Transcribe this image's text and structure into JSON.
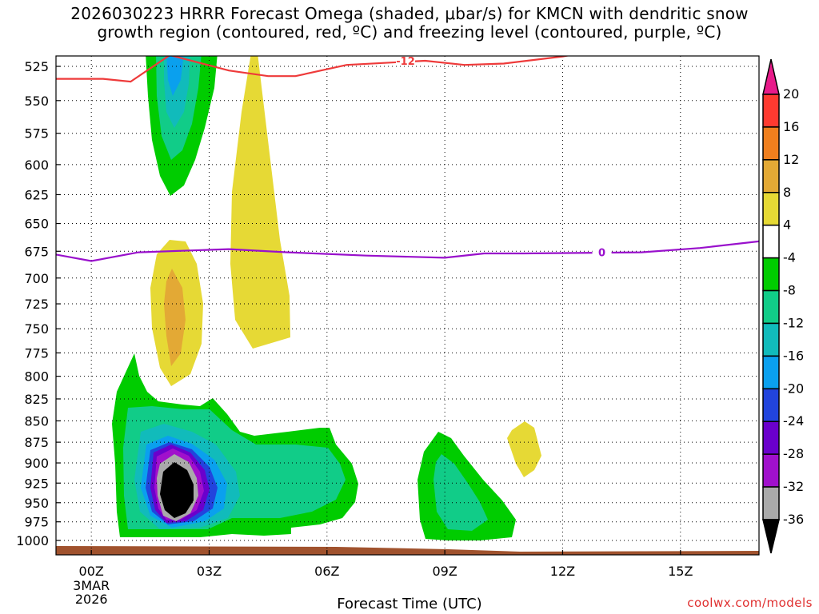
{
  "title_line1": "2026030223 HRRR Forecast Omega (shaded, μbar/s) for KMCN with dendritic snow",
  "title_line2": "growth region (contoured, red, ºC) and freezing level (contoured, purple, ºC)",
  "credit": "coolwx.com/models",
  "chart_data": {
    "type": "time-height contour",
    "xlabel": "Forecast Time (UTC)",
    "x_range_hours": [
      -0.9,
      17
    ],
    "x_ticks": [
      {
        "hour": 0,
        "label": "00Z",
        "sub1": "3MAR",
        "sub2": "2026"
      },
      {
        "hour": 3,
        "label": "03Z",
        "sub1": "",
        "sub2": ""
      },
      {
        "hour": 6,
        "label": "06Z",
        "sub1": "",
        "sub2": ""
      },
      {
        "hour": 9,
        "label": "09Z",
        "sub1": "",
        "sub2": ""
      },
      {
        "hour": 12,
        "label": "12Z",
        "sub1": "",
        "sub2": ""
      },
      {
        "hour": 15,
        "label": "15Z",
        "sub1": "",
        "sub2": ""
      }
    ],
    "y_levels_mb": [
      525,
      550,
      575,
      600,
      625,
      650,
      675,
      700,
      725,
      750,
      775,
      800,
      825,
      850,
      875,
      900,
      925,
      950,
      975,
      1000
    ],
    "y_log_scale": true,
    "colorbar": {
      "labels": [
        "20",
        "16",
        "12",
        "8",
        "4",
        "-4",
        "-8",
        "-12",
        "-16",
        "-20",
        "-24",
        "-28",
        "-32",
        "-36"
      ],
      "bins": [
        {
          "color": "#e81b8a"
        },
        {
          "color": "#ff3a30"
        },
        {
          "color": "#f07f1e"
        },
        {
          "color": "#e3a935"
        },
        {
          "color": "#e6d935"
        },
        {
          "color": "#ffffff"
        },
        {
          "color": "#00cc00"
        },
        {
          "color": "#11cc88"
        },
        {
          "color": "#11bbbb"
        },
        {
          "color": "#0aa0ee"
        },
        {
          "color": "#2244dd"
        },
        {
          "color": "#6a00cc"
        },
        {
          "color": "#a010cc"
        },
        {
          "color": "#aaaaaa"
        },
        {
          "color": "#000000"
        }
      ]
    },
    "contours": [
      {
        "name": "dendritic-growth",
        "color": "#ee3a3a",
        "label": "-12",
        "points": [
          [
            -0.9,
            534
          ],
          [
            0.3,
            534
          ],
          [
            1.0,
            536
          ],
          [
            2.0,
            517
          ],
          [
            3.5,
            528
          ],
          [
            4.5,
            532
          ],
          [
            5.2,
            532
          ],
          [
            6.5,
            524
          ],
          [
            8.5,
            521
          ],
          [
            9.5,
            524
          ],
          [
            10.5,
            523
          ],
          [
            12.0,
            518
          ],
          [
            13.0,
            513
          ]
        ]
      },
      {
        "name": "freezing-level",
        "color": "#9910cc",
        "label": "0",
        "points": [
          [
            -0.9,
            678
          ],
          [
            0.0,
            684
          ],
          [
            1.2,
            676
          ],
          [
            3.5,
            673
          ],
          [
            5.0,
            676
          ],
          [
            7.0,
            679
          ],
          [
            9.0,
            681
          ],
          [
            10.0,
            677
          ],
          [
            11.0,
            677
          ],
          [
            14.0,
            676
          ],
          [
            15.5,
            672
          ],
          [
            17.0,
            666
          ]
        ]
      }
    ],
    "ground_color": "#a0522d"
  }
}
